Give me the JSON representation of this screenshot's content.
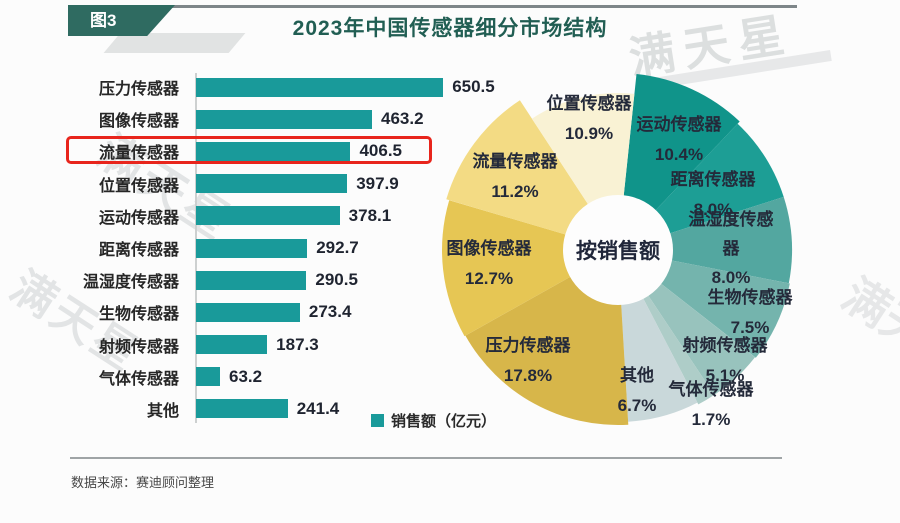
{
  "page": {
    "figure_tag": "图3",
    "title": "2023年中国传感器细分市场结构",
    "watermark": "满天星",
    "source": "数据来源：赛迪顾问整理"
  },
  "colors": {
    "bar_teal": "#199a9a",
    "badge_green": "#2f6b61",
    "title_green": "#215e53",
    "highlight_red": "#e8251c"
  },
  "chart_data": [
    {
      "type": "bar",
      "orientation": "horizontal",
      "legend": "销售额（亿元）",
      "unit": "亿元",
      "categories": [
        "压力传感器",
        "图像传感器",
        "流量传感器",
        "位置传感器",
        "运动传感器",
        "距离传感器",
        "温湿度传感器",
        "生物传感器",
        "射频传感器",
        "气体传感器",
        "其他"
      ],
      "values": [
        650.5,
        463.2,
        406.5,
        397.9,
        378.1,
        292.7,
        290.5,
        273.4,
        187.3,
        63.2,
        241.4
      ],
      "highlighted_category": "流量传感器",
      "xlim": [
        0,
        680
      ],
      "bar_color": "#199a9a",
      "grid": false
    },
    {
      "type": "donut",
      "center_label": "按销售额",
      "start_angle_deg": 6,
      "slices": [
        {
          "name": "运动传感器",
          "pct": 10.4,
          "pct_label": "10.4%",
          "color": "#10948a",
          "r": 177,
          "label_pos": [
            249,
            55
          ]
        },
        {
          "name": "距离传感器",
          "pct": 8.0,
          "pct_label": "8.0%",
          "color": "#1d9e95",
          "r": 174,
          "label_pos": [
            283,
            110
          ]
        },
        {
          "name": "温湿度传感器",
          "pct": 8.0,
          "pct_label": "8.0%",
          "color": "#53a7a0",
          "r": 174,
          "label_pos": [
            301,
            150
          ],
          "wrap": true
        },
        {
          "name": "生物传感器",
          "pct": 7.5,
          "pct_label": "7.5%",
          "color": "#74b4ad",
          "r": 175,
          "label_pos": [
            320,
            228
          ]
        },
        {
          "name": "射频传感器",
          "pct": 5.1,
          "pct_label": "5.1%",
          "color": "#98c3bd",
          "r": 174,
          "label_pos": [
            295,
            276
          ]
        },
        {
          "name": "气体传感器",
          "pct": 1.7,
          "pct_label": "1.7%",
          "color": "#aecdc8",
          "r": 174,
          "label_pos": [
            281,
            320
          ]
        },
        {
          "name": "其他",
          "pct": 6.7,
          "pct_label": "6.7%",
          "color": "#c9d8da",
          "r": 172,
          "label_pos": [
            207,
            306
          ]
        },
        {
          "name": "压力传感器",
          "pct": 17.8,
          "pct_label": "17.8%",
          "color": "#d7b64a",
          "r": 175,
          "label_pos": [
            98,
            276
          ]
        },
        {
          "name": "图像传感器",
          "pct": 12.7,
          "pct_label": "12.7%",
          "color": "#e6c654",
          "r": 176,
          "label_pos": [
            59,
            179
          ]
        },
        {
          "name": "流量传感器",
          "pct": 11.2,
          "pct_label": "11.2%",
          "color": "#f3db84",
          "r": 179,
          "label_pos": [
            85,
            92
          ]
        },
        {
          "name": "位置传感器",
          "pct": 10.9,
          "pct_label": "10.9%",
          "color": "#f9f2d4",
          "r": 157,
          "label_pos": [
            159,
            34
          ]
        }
      ]
    }
  ]
}
